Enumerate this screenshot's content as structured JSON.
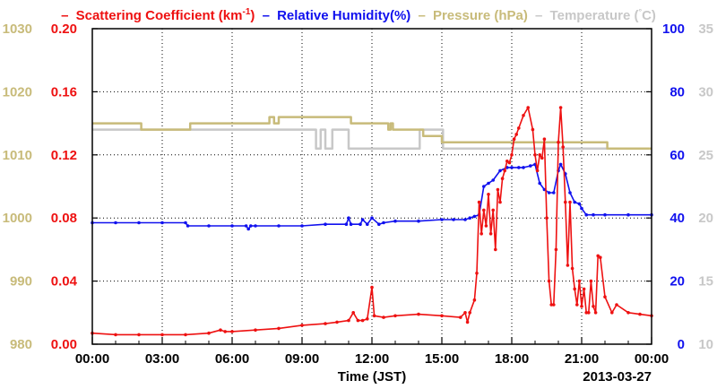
{
  "chart_data": {
    "type": "line",
    "title_parts": {
      "scattering": "Scattering Coefficient (km",
      "scattering_sup": "-1",
      "scattering_close": ")",
      "humidity": "Relative Humidity(%)",
      "pressure": "Pressure (hPa)",
      "temperature": "Temperature (",
      "temperature_unit": "°",
      "temperature_close": "C)",
      "dash": "–"
    },
    "xlabel": "Time (JST)",
    "date_label": "2013-03-27",
    "x_ticks": [
      "00:00",
      "03:00",
      "06:00",
      "09:00",
      "12:00",
      "15:00",
      "18:00",
      "21:00",
      "00:00"
    ],
    "xlim_hours": [
      0,
      24
    ],
    "axes": {
      "pressure": {
        "label": "Pressure (hPa)",
        "ticks": [
          "980",
          "990",
          "1000",
          "1010",
          "1020",
          "1030"
        ],
        "ylim": [
          980,
          1030
        ],
        "color": "#c8bb7a"
      },
      "scattering": {
        "label": "Scattering Coefficient (km-1)",
        "ticks": [
          "0.00",
          "0.04",
          "0.08",
          "0.12",
          "0.16",
          "0.20"
        ],
        "ylim": [
          0,
          0.2
        ],
        "color": "#ee1111"
      },
      "humidity": {
        "label": "Relative Humidity(%)",
        "ticks": [
          "0",
          "20",
          "40",
          "60",
          "80",
          "100"
        ],
        "ylim": [
          0,
          100
        ],
        "color": "#1111ee"
      },
      "temperature": {
        "label": "Temperature (°C)",
        "ticks": [
          "10",
          "15",
          "20",
          "25",
          "30",
          "35"
        ],
        "ylim": [
          10,
          35
        ],
        "color": "#c8c8c8"
      }
    },
    "grid": true,
    "series": [
      {
        "name": "Scattering Coefficient",
        "color": "#ee1111",
        "axis": "scattering",
        "markers": true,
        "x": [
          0,
          1,
          2,
          3,
          4,
          5,
          5.5,
          5.7,
          6,
          7,
          8,
          9,
          10,
          10.5,
          11,
          11.2,
          11.4,
          11.6,
          11.8,
          12,
          12.1,
          12.5,
          13,
          14,
          15,
          15.8,
          16,
          16.1,
          16.2,
          16.4,
          16.5,
          16.6,
          16.7,
          16.8,
          16.9,
          17,
          17.1,
          17.2,
          17.3,
          17.4,
          17.5,
          17.6,
          17.7,
          17.8,
          17.9,
          18,
          18.1,
          18.2,
          18.3,
          18.5,
          18.7,
          18.9,
          19,
          19.1,
          19.2,
          19.3,
          19.4,
          19.5,
          19.6,
          19.7,
          19.8,
          19.9,
          20,
          20.1,
          20.2,
          20.3,
          20.4,
          20.5,
          20.6,
          20.7,
          20.8,
          20.9,
          21,
          21.1,
          21.2,
          21.3,
          21.4,
          21.5,
          21.6,
          21.7,
          21.8,
          22,
          22.3,
          22.5,
          23,
          23.5,
          24
        ],
        "y": [
          0.007,
          0.006,
          0.006,
          0.006,
          0.006,
          0.007,
          0.009,
          0.008,
          0.008,
          0.009,
          0.01,
          0.012,
          0.013,
          0.014,
          0.015,
          0.02,
          0.015,
          0.015,
          0.016,
          0.036,
          0.018,
          0.017,
          0.018,
          0.019,
          0.018,
          0.017,
          0.02,
          0.014,
          0.02,
          0.028,
          0.045,
          0.09,
          0.07,
          0.085,
          0.075,
          0.095,
          0.07,
          0.085,
          0.06,
          0.098,
          0.09,
          0.105,
          0.11,
          0.116,
          0.115,
          0.12,
          0.13,
          0.133,
          0.137,
          0.145,
          0.15,
          0.136,
          0.12,
          0.11,
          0.12,
          0.118,
          0.13,
          0.08,
          0.04,
          0.025,
          0.025,
          0.06,
          0.128,
          0.15,
          0.125,
          0.09,
          0.05,
          0.09,
          0.048,
          0.035,
          0.025,
          0.04,
          0.024,
          0.035,
          0.02,
          0.02,
          0.04,
          0.024,
          0.02,
          0.056,
          0.055,
          0.03,
          0.02,
          0.025,
          0.02,
          0.019,
          0.018
        ]
      },
      {
        "name": "Relative Humidity",
        "color": "#1111ee",
        "axis": "humidity",
        "markers": true,
        "x": [
          0,
          1,
          2,
          3,
          4,
          4.1,
          5,
          6,
          6.6,
          6.7,
          6.8,
          7,
          8,
          9,
          10,
          10.9,
          11,
          11.1,
          11.5,
          11.6,
          11.8,
          12,
          12.3,
          12.5,
          13,
          14,
          15,
          15.5,
          16,
          16.2,
          16.4,
          16.6,
          16.8,
          17,
          17.2,
          17.5,
          17.8,
          18,
          18.3,
          18.5,
          18.8,
          19,
          19.2,
          19.4,
          19.6,
          19.8,
          20,
          20.1,
          20.3,
          20.5,
          20.7,
          20.9,
          21,
          21.2,
          21.5,
          22,
          23,
          24
        ],
        "y": [
          38.5,
          38.5,
          38.5,
          38.5,
          38.5,
          37.5,
          37.5,
          37.5,
          37.5,
          36.5,
          37.5,
          37.5,
          37.5,
          37.5,
          38,
          38,
          40,
          38,
          38,
          39.5,
          38,
          40,
          38,
          38.5,
          39,
          39,
          39.5,
          39.5,
          39.5,
          40,
          40.5,
          41,
          50,
          51,
          52,
          55,
          56,
          56,
          56,
          56,
          56.5,
          57,
          51,
          49,
          48,
          48,
          55,
          57,
          54,
          48,
          45,
          44.5,
          43,
          41,
          41,
          41,
          41,
          41
        ]
      },
      {
        "name": "Pressure",
        "color": "#c8bb7a",
        "axis": "pressure",
        "markers": false,
        "x": [
          0,
          2,
          2.1,
          2.2,
          4,
          4.2,
          7.5,
          7.6,
          7.8,
          8,
          10.9,
          11.1,
          12,
          12.1,
          12.5,
          12.7,
          12.8,
          12.9,
          14,
          14.2,
          14.8,
          15,
          16,
          17,
          19,
          21,
          22.1,
          22.2,
          24
        ],
        "y": [
          1015,
          1015,
          1014,
          1014,
          1014,
          1015,
          1015,
          1016,
          1015,
          1016,
          1016,
          1015,
          1015,
          1015,
          1015,
          1014,
          1015,
          1014,
          1014,
          1013,
          1013,
          1012,
          1012,
          1012,
          1012,
          1012,
          1011,
          1011,
          1011
        ]
      },
      {
        "name": "Temperature",
        "color": "#c8c8c8",
        "axis": "temperature",
        "markers": false,
        "x": [
          0,
          4,
          8,
          9.5,
          9.6,
          9.8,
          10,
          10.3,
          10.5,
          10.8,
          11,
          12,
          13,
          14,
          14.05,
          15,
          15.05,
          24
        ],
        "y": [
          27,
          27,
          27,
          27,
          25.5,
          27,
          25.5,
          27,
          27,
          27,
          25.5,
          25.5,
          25.5,
          25.5,
          27,
          27,
          25.5,
          25.5
        ]
      }
    ]
  }
}
